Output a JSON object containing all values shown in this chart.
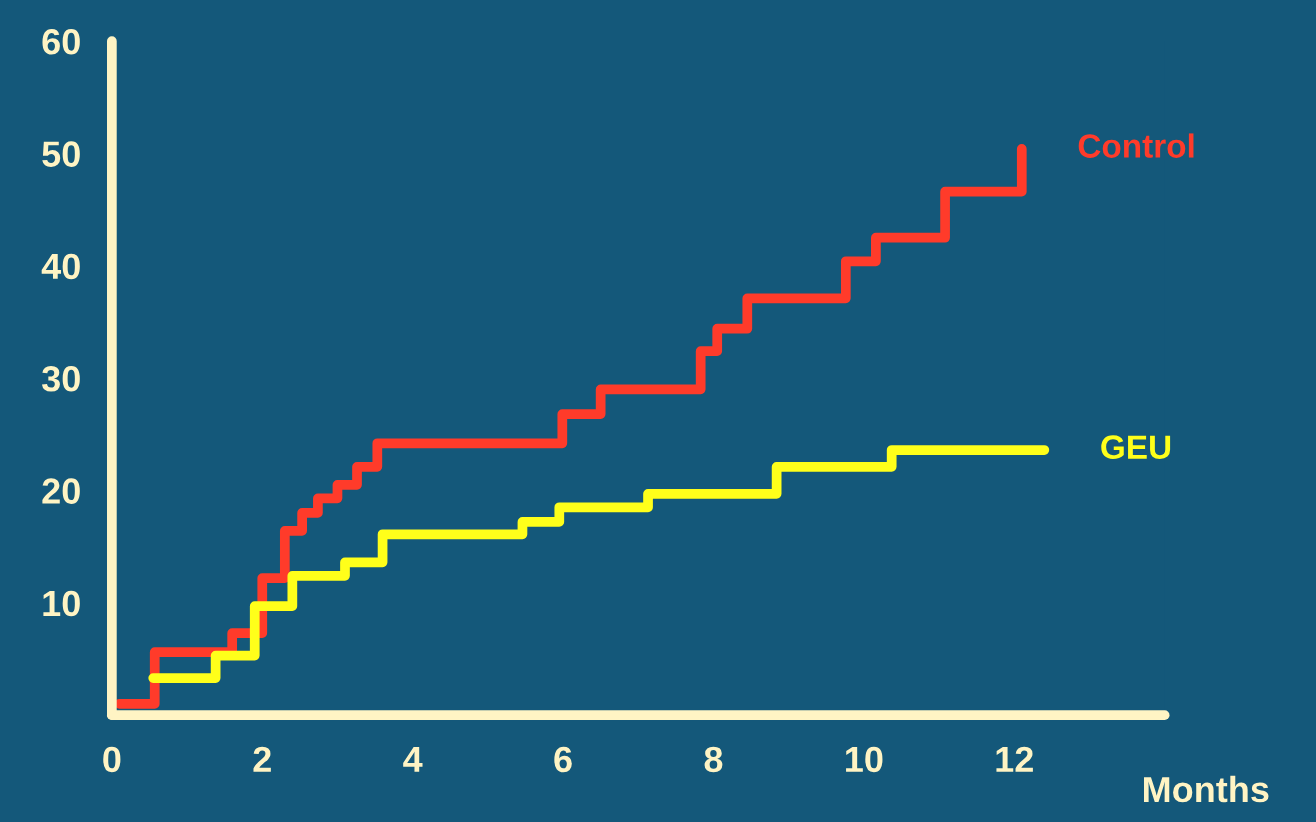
{
  "chart_data": {
    "type": "step",
    "xlabel": "Months",
    "xlim": [
      0,
      14
    ],
    "ylim": [
      0,
      60
    ],
    "xticks": [
      0,
      2,
      4,
      6,
      8,
      10,
      12
    ],
    "yticks": [
      10,
      20,
      30,
      40,
      50,
      60
    ],
    "grid": false,
    "legend": false,
    "line_style": "solid",
    "marker": "none",
    "series": [
      {
        "name": "Control",
        "color": "#ff3b2a",
        "x": [
          0.1,
          0.57,
          1.6,
          2.0,
          2.3,
          2.53,
          2.74,
          3.0,
          3.26,
          3.53,
          5.99,
          6.5,
          7.83,
          8.05,
          8.45,
          9.76,
          10.16,
          11.08,
          12.1,
          12.1
        ],
        "values": [
          1,
          5.6,
          7.3,
          12.2,
          16.4,
          18.0,
          19.3,
          20.5,
          22.1,
          24.2,
          26.8,
          29.0,
          32.4,
          34.4,
          37.1,
          40.4,
          42.5,
          46.6,
          46.6,
          50.4
        ]
      },
      {
        "name": "GEU",
        "color": "#ffff1a",
        "x": [
          0.55,
          1.38,
          1.9,
          2.4,
          3.1,
          3.6,
          5.46,
          5.95,
          7.13,
          8.84,
          10.37,
          12.4
        ],
        "values": [
          3.3,
          5.3,
          9.7,
          12.4,
          13.6,
          16.1,
          17.2,
          18.5,
          19.7,
          22.1,
          23.6,
          23.6
        ]
      }
    ]
  }
}
